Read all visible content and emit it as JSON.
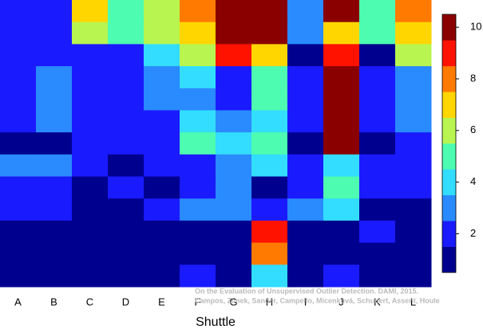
{
  "chart_data": {
    "type": "heatmap",
    "x_label": "Shuttle",
    "categories": [
      "A",
      "B",
      "C",
      "D",
      "E",
      "F",
      "G",
      "H",
      "I",
      "J",
      "K",
      "L"
    ],
    "z": [
      [
        2,
        2,
        7,
        5,
        6,
        8,
        10,
        10,
        3,
        10,
        5,
        8
      ],
      [
        2,
        2,
        6,
        5,
        6,
        7,
        10,
        10,
        3,
        7,
        5,
        7
      ],
      [
        2,
        2,
        2,
        2,
        4,
        6,
        9,
        7,
        1,
        9,
        1,
        6
      ],
      [
        2,
        3,
        2,
        2,
        3,
        4,
        2,
        5,
        2,
        10,
        2,
        3
      ],
      [
        2,
        3,
        2,
        2,
        3,
        3,
        2,
        5,
        2,
        10,
        2,
        3
      ],
      [
        2,
        3,
        2,
        2,
        2,
        4,
        3,
        4,
        2,
        10,
        2,
        3
      ],
      [
        1,
        1,
        2,
        2,
        2,
        5,
        4,
        5,
        1,
        10,
        1,
        2
      ],
      [
        3,
        3,
        2,
        1,
        2,
        2,
        3,
        4,
        2,
        4,
        2,
        2
      ],
      [
        2,
        2,
        1,
        2,
        1,
        2,
        3,
        1,
        2,
        5,
        2,
        2
      ],
      [
        2,
        2,
        1,
        1,
        2,
        3,
        3,
        2,
        3,
        4,
        1,
        1
      ],
      [
        1,
        1,
        1,
        1,
        1,
        1,
        1,
        9,
        1,
        1,
        2,
        1
      ],
      [
        1,
        1,
        1,
        1,
        1,
        1,
        1,
        8,
        1,
        1,
        1,
        1
      ],
      [
        1,
        1,
        1,
        1,
        1,
        2,
        1,
        4,
        1,
        2,
        1,
        1
      ]
    ],
    "colormap": [
      "#00008f",
      "#1a1aff",
      "#2a8aff",
      "#33ddff",
      "#4dfcb0",
      "#b8f550",
      "#ffd600",
      "#ff7a00",
      "#ff1200",
      "#8a0000"
    ],
    "clim": [
      0.5,
      10.5
    ],
    "cticks": [
      2,
      4,
      6,
      8,
      10
    ],
    "annotation": [
      "On the Evaluation of Unsupervised Outlier Detection. DAMI, 2015.",
      "Campos, Zimek, Sander, Campello, Micenková, Schubert, Assent, Houle"
    ]
  }
}
